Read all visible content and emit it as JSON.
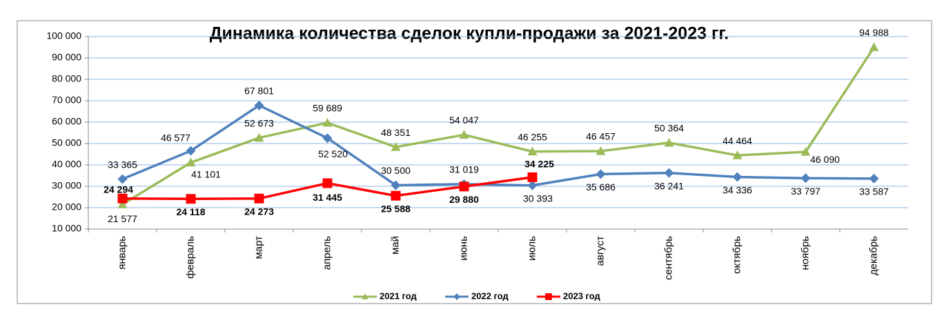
{
  "chart_data": {
    "type": "line",
    "title": "Динамика количества сделок купли-продажи за 2021-2023 гг.",
    "categories": [
      "январь",
      "февраль",
      "март",
      "апрель",
      "май",
      "июнь",
      "июль",
      "август",
      "сентябрь",
      "октябрь",
      "ноябрь",
      "декабрь"
    ],
    "ylim": [
      10000,
      100000
    ],
    "yticks": [
      {
        "value": 10000,
        "label": "10 000"
      },
      {
        "value": 20000,
        "label": "20 000"
      },
      {
        "value": 30000,
        "label": "30 000"
      },
      {
        "value": 40000,
        "label": "40 000"
      },
      {
        "value": 50000,
        "label": "50 000"
      },
      {
        "value": 60000,
        "label": "60 000"
      },
      {
        "value": 70000,
        "label": "70 000"
      },
      {
        "value": 80000,
        "label": "80 000"
      },
      {
        "value": 90000,
        "label": "90 000"
      },
      {
        "value": 100000,
        "label": "100 000"
      }
    ],
    "grid": true,
    "legend": "bottom",
    "series": [
      {
        "name": "2021 год",
        "color": "#9bbb59",
        "marker": "triangle",
        "values": [
          21577,
          41101,
          52673,
          59689,
          48351,
          54047,
          46255,
          46457,
          50364,
          44464,
          46090,
          94988
        ],
        "value_labels": [
          "21 577",
          "41 101",
          "52 673",
          "59 689",
          "48 351",
          "54 047",
          "46 255",
          "46 457",
          "50 364",
          "44 464",
          "46 090",
          "94 988"
        ]
      },
      {
        "name": "2022 год",
        "color": "#4f81bd",
        "marker": "diamond",
        "values": [
          33365,
          46577,
          67801,
          52520,
          30500,
          31019,
          30393,
          35686,
          36241,
          34336,
          33797,
          33587
        ],
        "value_labels": [
          "33 365",
          "46 577",
          "67 801",
          "52 520",
          "30 500",
          "31 019",
          "30 393",
          "35 686",
          "36 241",
          "34 336",
          "33 797",
          "33 587"
        ]
      },
      {
        "name": "2023 год",
        "color": "#ff0000",
        "marker": "square",
        "label_bold": true,
        "values": [
          24294,
          24118,
          24273,
          31445,
          25588,
          29880,
          34225,
          null,
          null,
          null,
          null,
          null
        ],
        "value_labels": [
          "24 294",
          "24 118",
          "24 273",
          "31 445",
          "25 588",
          "29 880",
          "34 225",
          null,
          null,
          null,
          null,
          null
        ]
      }
    ]
  }
}
